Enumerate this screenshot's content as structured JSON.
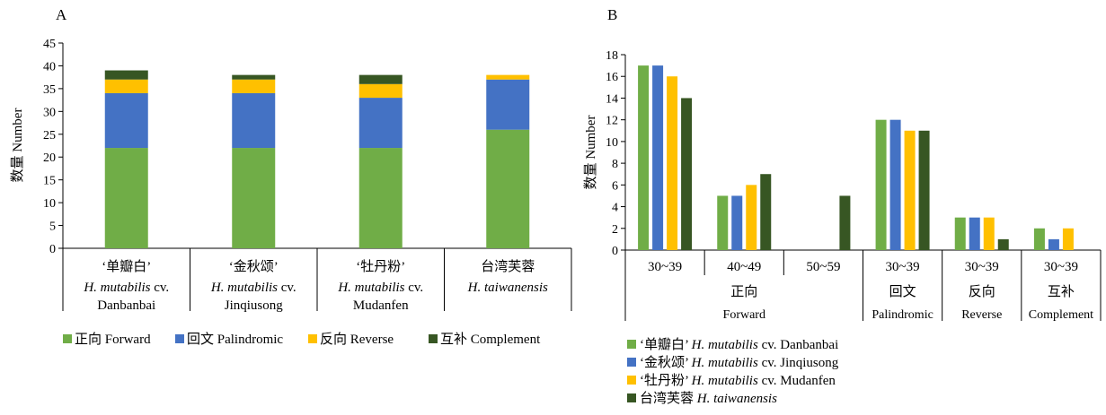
{
  "chart_data": [
    {
      "panel": "A",
      "type": "bar",
      "stacked": true,
      "ylabel": "数量 Number",
      "ylim": [
        0,
        45
      ],
      "yticks": [
        0,
        5,
        10,
        15,
        20,
        25,
        30,
        35,
        40,
        45
      ],
      "categories": [
        {
          "name": "‘单瓣白’",
          "species": "H. mutabilis",
          "cv": " cv.",
          "sub": "Danbanbai"
        },
        {
          "name": "‘金秋颂’",
          "species": "H. mutabilis",
          "cv": " cv.",
          "sub": "Jinqiusong"
        },
        {
          "name": "‘牡丹粉’",
          "species": "H. mutabilis",
          "cv": " cv.",
          "sub": "Mudanfen"
        },
        {
          "name": "台湾芙蓉",
          "species": "H. taiwanensis",
          "cv": "",
          "sub": ""
        }
      ],
      "series": [
        {
          "name": "正向 Forward",
          "color": "#70AD47",
          "values": [
            22,
            22,
            22,
            26
          ]
        },
        {
          "name": "回文 Palindromic",
          "color": "#4472C4",
          "values": [
            12,
            12,
            11,
            11
          ]
        },
        {
          "name": "反向 Reverse",
          "color": "#FFC000",
          "values": [
            3,
            3,
            3,
            1
          ]
        },
        {
          "name": "互补 Complement",
          "color": "#375623",
          "values": [
            2,
            1,
            2,
            0
          ]
        }
      ],
      "legend_position": "bottom"
    },
    {
      "panel": "B",
      "type": "bar",
      "grouped": true,
      "ylabel": "数量 Number",
      "ylim": [
        0,
        18
      ],
      "yticks": [
        0,
        2,
        4,
        6,
        8,
        10,
        12,
        14,
        16,
        18
      ],
      "categories": [
        "30~39",
        "40~49",
        "50~59",
        "30~39",
        "30~39",
        "30~39"
      ],
      "groups": [
        {
          "cn": "正向",
          "en": "Forward",
          "span": [
            0,
            2
          ]
        },
        {
          "cn": "回文",
          "en": "Palindromic",
          "span": [
            3,
            3
          ]
        },
        {
          "cn": "反向",
          "en": "Reverse",
          "span": [
            4,
            4
          ]
        },
        {
          "cn": "互补",
          "en": "Complement",
          "span": [
            5,
            5
          ]
        }
      ],
      "series": [
        {
          "name_cn": "‘单瓣白’",
          "species": "H. mutabilis",
          "cv": " cv. Danbanbai",
          "color": "#70AD47",
          "values": [
            17,
            5,
            0,
            12,
            3,
            2
          ]
        },
        {
          "name_cn": "‘金秋颂’",
          "species": "H. mutabilis",
          "cv": " cv. Jinqiusong",
          "color": "#4472C4",
          "values": [
            17,
            5,
            0,
            12,
            3,
            1
          ]
        },
        {
          "name_cn": "‘牡丹粉’",
          "species": "H. mutabilis",
          "cv": " cv. Mudanfen",
          "color": "#FFC000",
          "values": [
            16,
            6,
            0,
            11,
            3,
            2
          ]
        },
        {
          "name_cn": "台湾芙蓉 ",
          "species": "H. taiwanensis",
          "cv": "",
          "color": "#375623",
          "values": [
            14,
            7,
            5,
            11,
            1,
            0
          ]
        }
      ],
      "legend_position": "bottom-left"
    }
  ]
}
